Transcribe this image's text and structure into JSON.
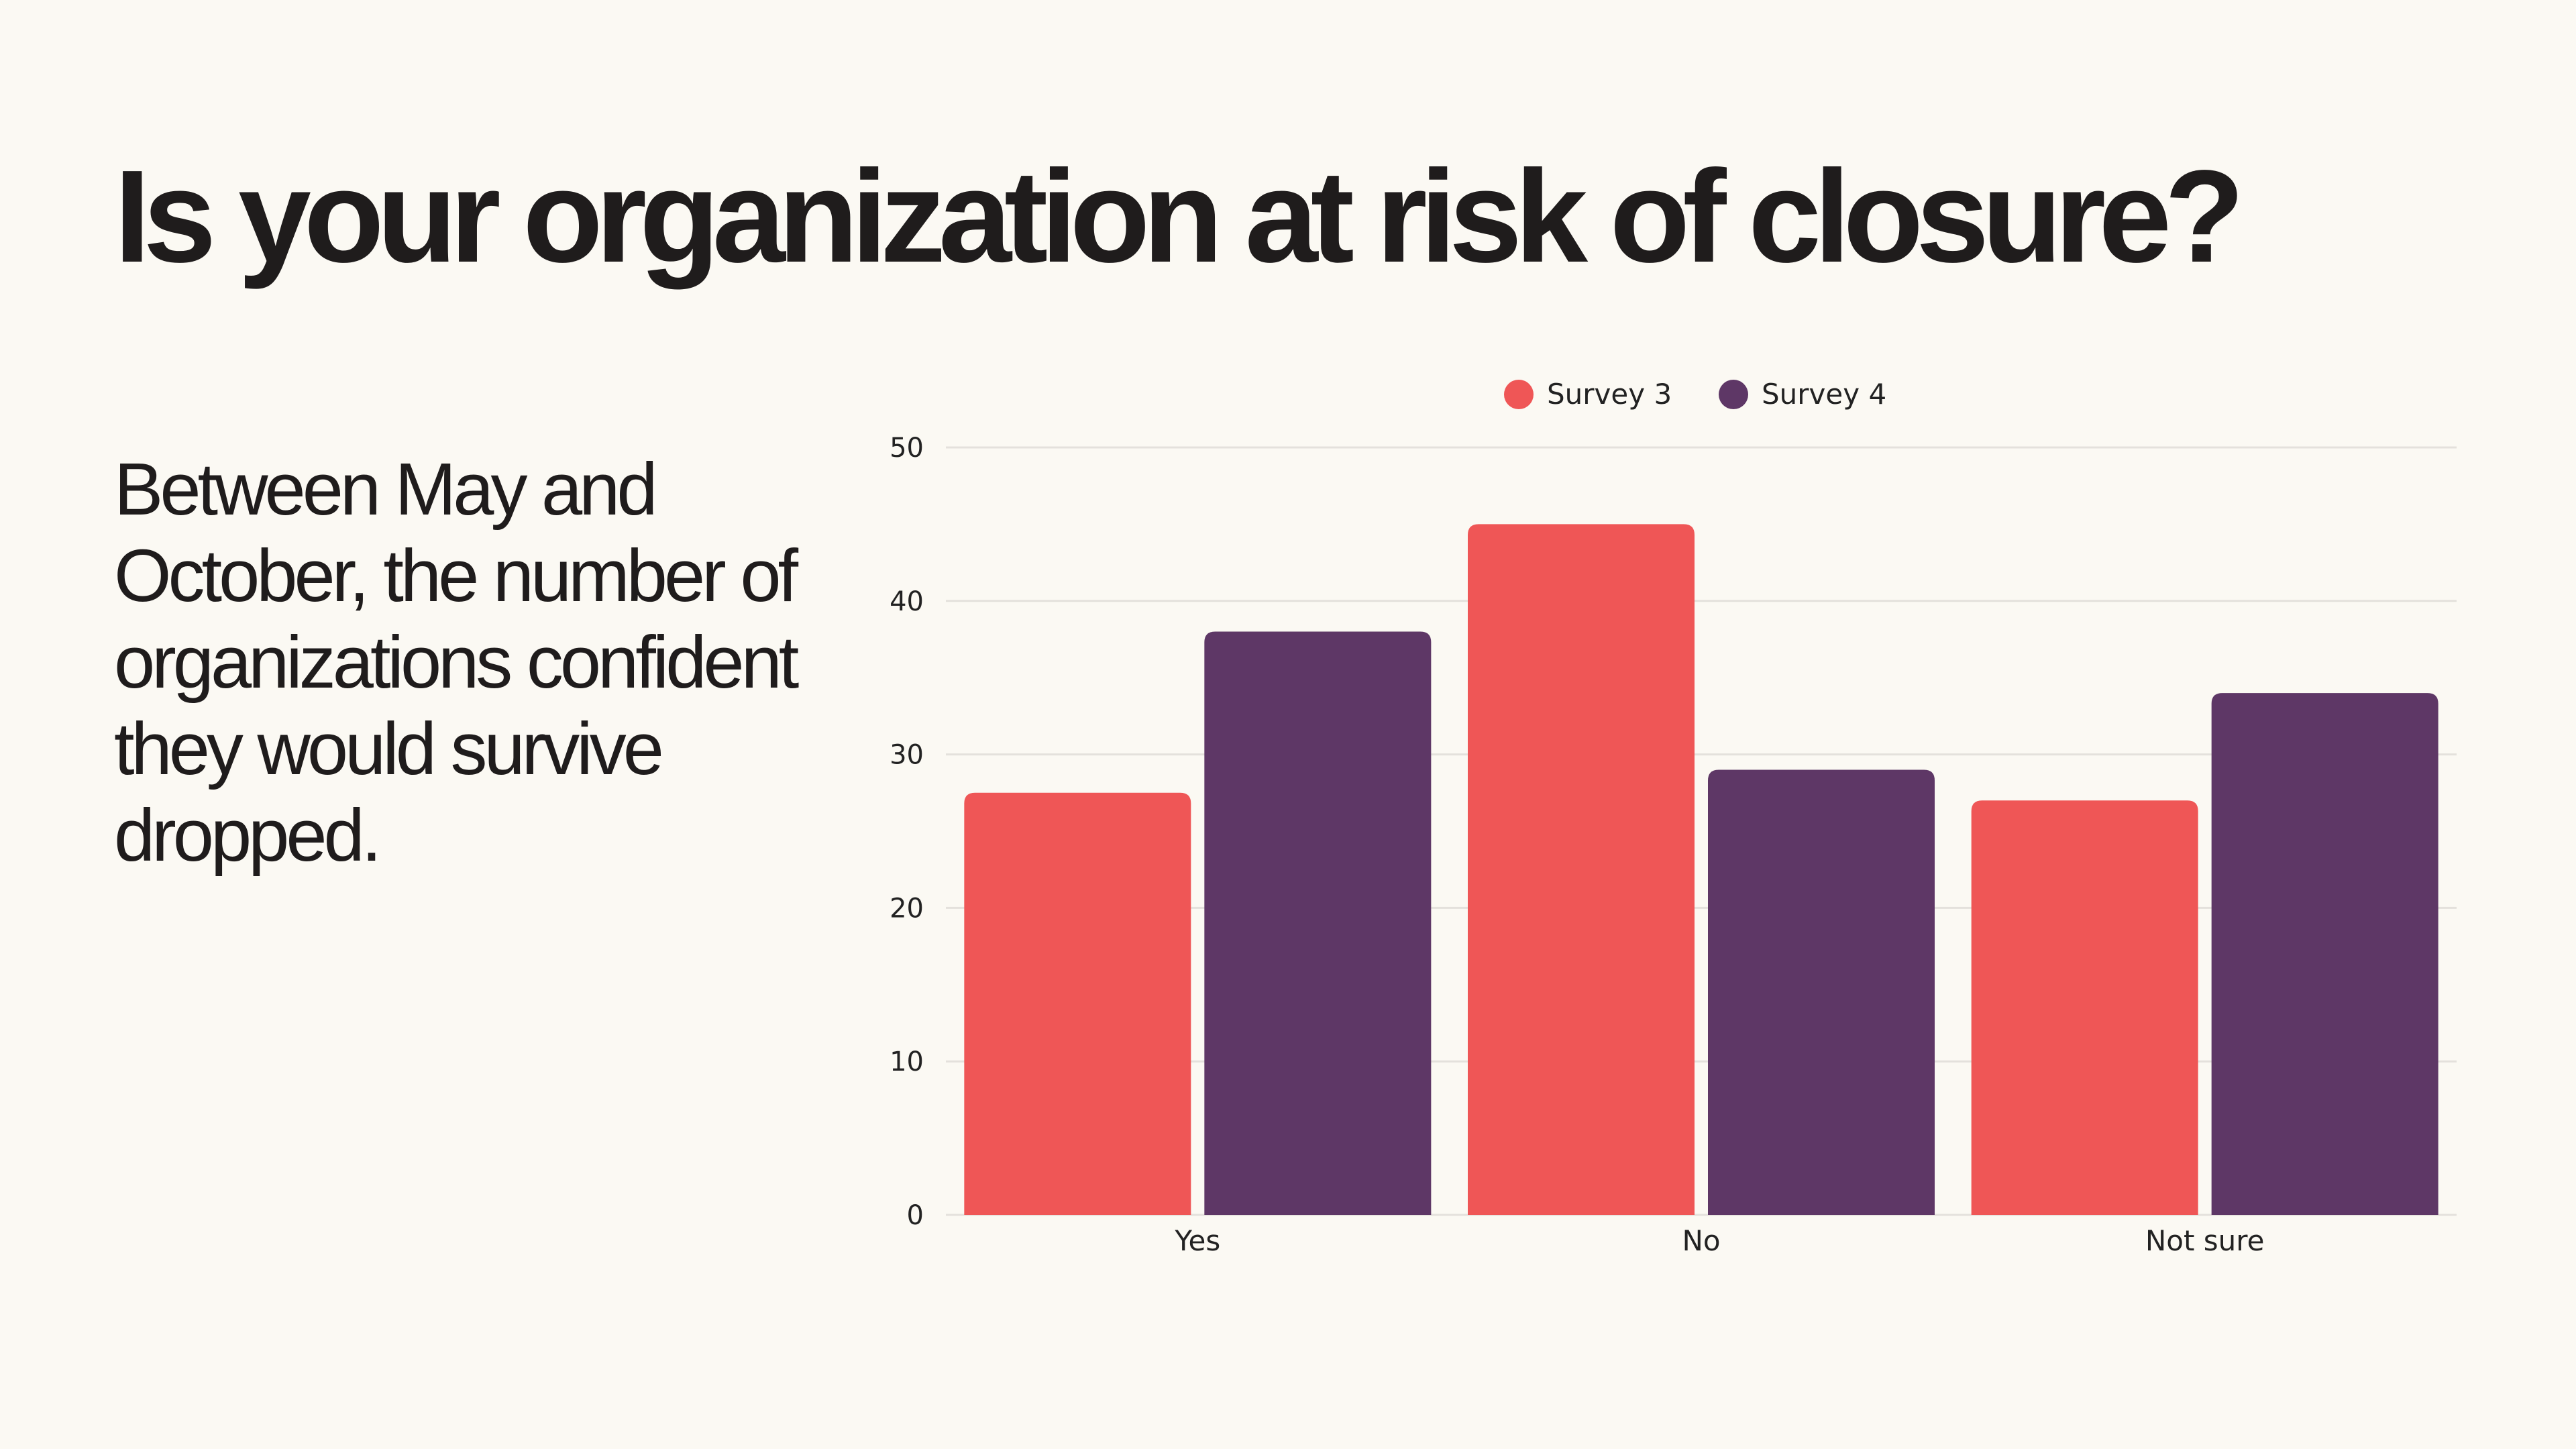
{
  "slide": {
    "title": "Is your organization at risk of closure?",
    "subtitle": "Between May and October, the number of organizations confident they would survive dropped."
  },
  "chart_data": {
    "type": "bar",
    "title": "",
    "xlabel": "",
    "ylabel": "",
    "categories": [
      "Yes",
      "No",
      "Not sure"
    ],
    "series": [
      {
        "name": "Survey 3",
        "color": "#ef5656",
        "values": [
          27.5,
          45,
          27
        ]
      },
      {
        "name": "Survey 4",
        "color": "#5e3766",
        "values": [
          38,
          29,
          34
        ]
      }
    ],
    "ylim": [
      0,
      50
    ],
    "yticks": [
      0,
      10,
      20,
      30,
      40,
      50
    ],
    "grid": true,
    "legend_position": "top-center",
    "colors": {
      "grid": "#e4e1dc",
      "axis_text": "#222222"
    }
  }
}
